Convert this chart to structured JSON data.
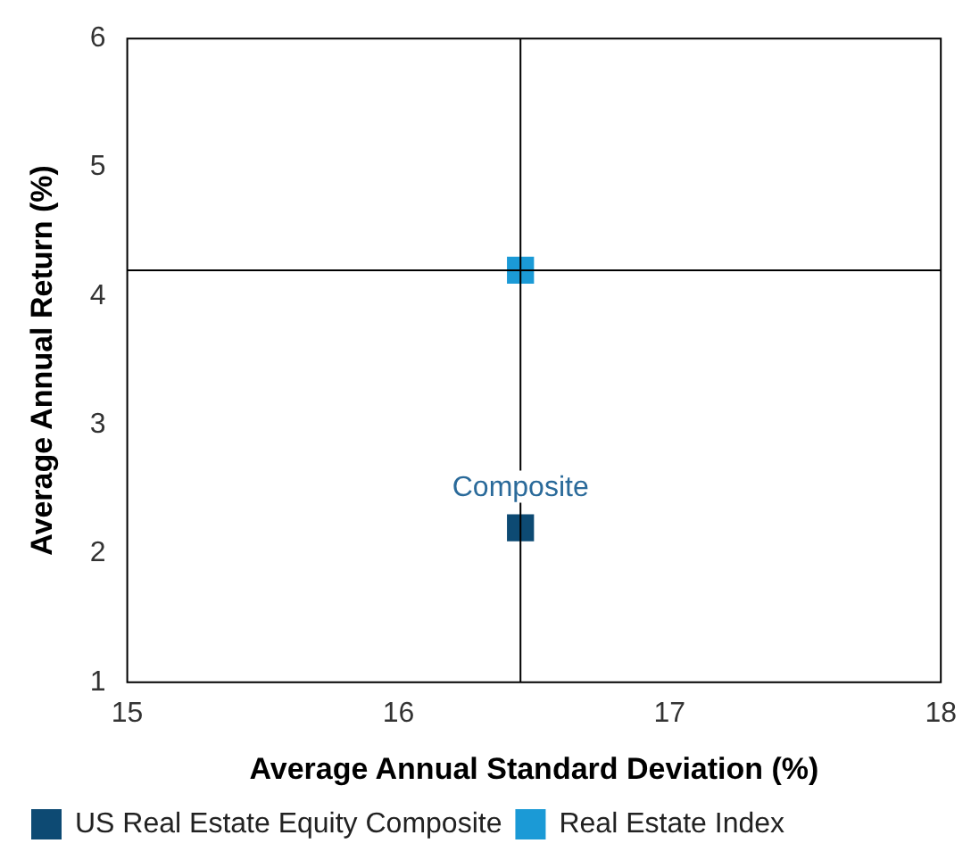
{
  "chart_data": {
    "type": "scatter",
    "xlabel": "Average Annual Standard Deviation (%)",
    "ylabel": "Average Annual Return (%)",
    "xlim": [
      15,
      18
    ],
    "xticks": [
      15,
      16,
      17,
      18
    ],
    "ylim": [
      1,
      6
    ],
    "yticks": [
      1,
      2,
      3,
      4,
      5,
      6
    ],
    "grid": false,
    "legend": "bottom",
    "marker": "square",
    "series": [
      {
        "name": "US Real Estate Equity Composite",
        "color": "#0d4a73",
        "x": [
          16.45
        ],
        "values": [
          2.2
        ]
      },
      {
        "name": "Real Estate Index",
        "color": "#1b9ad6",
        "x": [
          16.45
        ],
        "values": [
          4.2
        ]
      }
    ],
    "ref_lines": [
      {
        "axis": "x",
        "value": 16.45,
        "color": "#000000"
      },
      {
        "axis": "y",
        "value": 4.2,
        "color": "#000000"
      }
    ],
    "annotations": [
      {
        "text": "Composite",
        "x": 16.45,
        "y": 2.2
      }
    ]
  }
}
